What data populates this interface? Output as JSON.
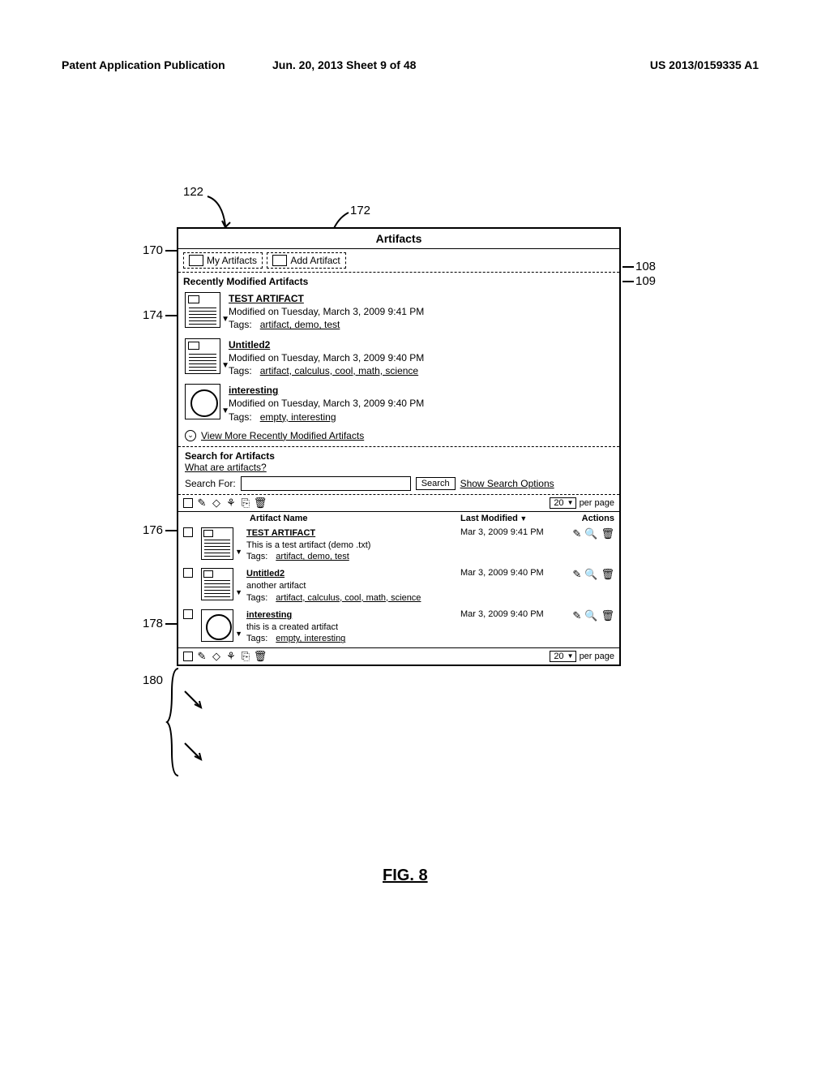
{
  "page_header": {
    "left": "Patent Application Publication",
    "mid": "Jun. 20, 2013  Sheet 9 of 48",
    "right": "US 2013/0159335 A1"
  },
  "figure_label": "FIG. 8",
  "callouts": {
    "c122": "122",
    "c172": "172",
    "c170": "170",
    "c174": "174",
    "c176": "176",
    "c178": "178",
    "c180": "180",
    "c108": "108",
    "c109": "109"
  },
  "window": {
    "title": "Artifacts",
    "tabs": {
      "my_artifacts": "My Artifacts",
      "add_artifact": "Add Artifact"
    },
    "recent": {
      "header": "Recently Modified Artifacts",
      "items": [
        {
          "title": "TEST ARTIFACT",
          "modified": "Modified on Tuesday, March 3, 2009 9:41 PM",
          "tags_label": "Tags:",
          "tags": "artifact, demo, test",
          "thumb": "doc"
        },
        {
          "title": "Untitled2",
          "modified": "Modified on Tuesday, March 3, 2009 9:40 PM",
          "tags_label": "Tags:",
          "tags": "artifact, calculus, cool, math, science",
          "thumb": "doc"
        },
        {
          "title": "interesting",
          "modified": "Modified on Tuesday, March 3, 2009 9:40 PM",
          "tags_label": "Tags:",
          "tags": "empty, interesting",
          "thumb": "globe"
        }
      ],
      "view_more": "View More Recently Modified Artifacts"
    },
    "search": {
      "header": "Search for Artifacts",
      "what_link": "What are artifacts?",
      "label": "Search For:",
      "button": "Search",
      "options": "Show Search Options"
    },
    "toolbar": {
      "per_page_value": "20",
      "per_page_label": "per page"
    },
    "table": {
      "col_name": "Artifact Name",
      "col_mod": "Last Modified",
      "col_act": "Actions",
      "rows": [
        {
          "title": "TEST ARTIFACT",
          "desc": "This is a test artifact  (demo .txt)",
          "tags_label": "Tags:",
          "tags": "artifact, demo, test",
          "modified": "Mar 3, 2009 9:41 PM",
          "thumb": "doc"
        },
        {
          "title": "Untitled2",
          "desc": "another artifact",
          "tags_label": "Tags:",
          "tags": "artifact, calculus, cool, math, science",
          "modified": "Mar 3, 2009 9:40 PM",
          "thumb": "doc"
        },
        {
          "title": "interesting",
          "desc": "this is a created artifact",
          "tags_label": "Tags:",
          "tags": "empty, interesting",
          "modified": "Mar 3, 2009 9:40 PM",
          "thumb": "globe"
        }
      ]
    }
  }
}
